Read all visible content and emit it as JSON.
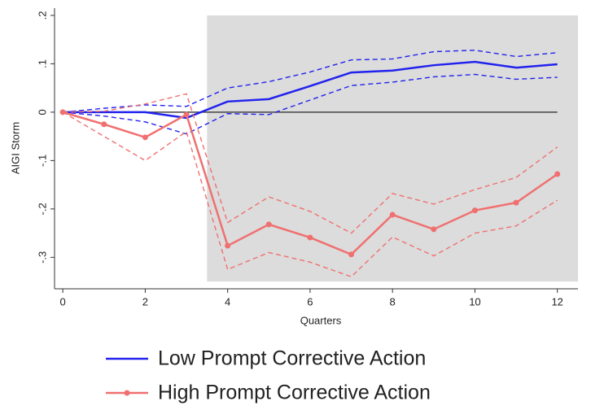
{
  "chart_data": {
    "type": "line",
    "x_label": "Quarters",
    "y_label": "AIGI Storm",
    "x": [
      0,
      1,
      2,
      3,
      4,
      5,
      6,
      7,
      8,
      9,
      10,
      11,
      12
    ],
    "xlim": [
      -0.2,
      12.5
    ],
    "xticks": [
      0,
      2,
      4,
      6,
      8,
      10,
      12
    ],
    "ylim": [
      -0.365,
      0.215
    ],
    "yticks": [
      {
        "value": 0.2,
        "label": ".2"
      },
      {
        "value": 0.1,
        "label": ".1"
      },
      0,
      {
        "value": -0.1,
        "label": "-.1"
      },
      {
        "value": -0.2,
        "label": "-.2"
      },
      {
        "value": -0.3,
        "label": "-.3"
      }
    ],
    "reference_line": 0,
    "shaded_region": {
      "x": [
        3.5,
        12.5
      ],
      "y": [
        -0.35,
        0.2
      ]
    },
    "series": [
      {
        "name": "Low Prompt Corrective Action",
        "color": "#2222ee",
        "marker": false,
        "values": [
          0,
          0,
          0,
          -0.012,
          0.022,
          0.027,
          0.054,
          0.082,
          0.086,
          0.097,
          0.104,
          0.092,
          0.099
        ],
        "ci_upper": [
          0,
          0.008,
          0.015,
          0.012,
          0.05,
          0.063,
          0.083,
          0.108,
          0.11,
          0.125,
          0.128,
          0.115,
          0.123
        ],
        "ci_lower": [
          0,
          -0.008,
          -0.02,
          -0.045,
          -0.003,
          -0.005,
          0.025,
          0.055,
          0.062,
          0.073,
          0.078,
          0.068,
          0.072
        ]
      },
      {
        "name": "High Prompt Corrective Action",
        "color": "#f07070",
        "marker": true,
        "values": [
          0,
          -0.025,
          -0.052,
          -0.005,
          -0.276,
          -0.232,
          -0.259,
          -0.294,
          -0.212,
          -0.242,
          -0.203,
          -0.187,
          -0.128
        ],
        "ci_upper": [
          0,
          0.002,
          0.017,
          0.038,
          -0.228,
          -0.175,
          -0.205,
          -0.25,
          -0.168,
          -0.19,
          -0.16,
          -0.135,
          -0.072
        ],
        "ci_lower": [
          0,
          -0.05,
          -0.1,
          -0.04,
          -0.325,
          -0.29,
          -0.31,
          -0.34,
          -0.258,
          -0.297,
          -0.25,
          -0.235,
          -0.182
        ]
      }
    ]
  }
}
